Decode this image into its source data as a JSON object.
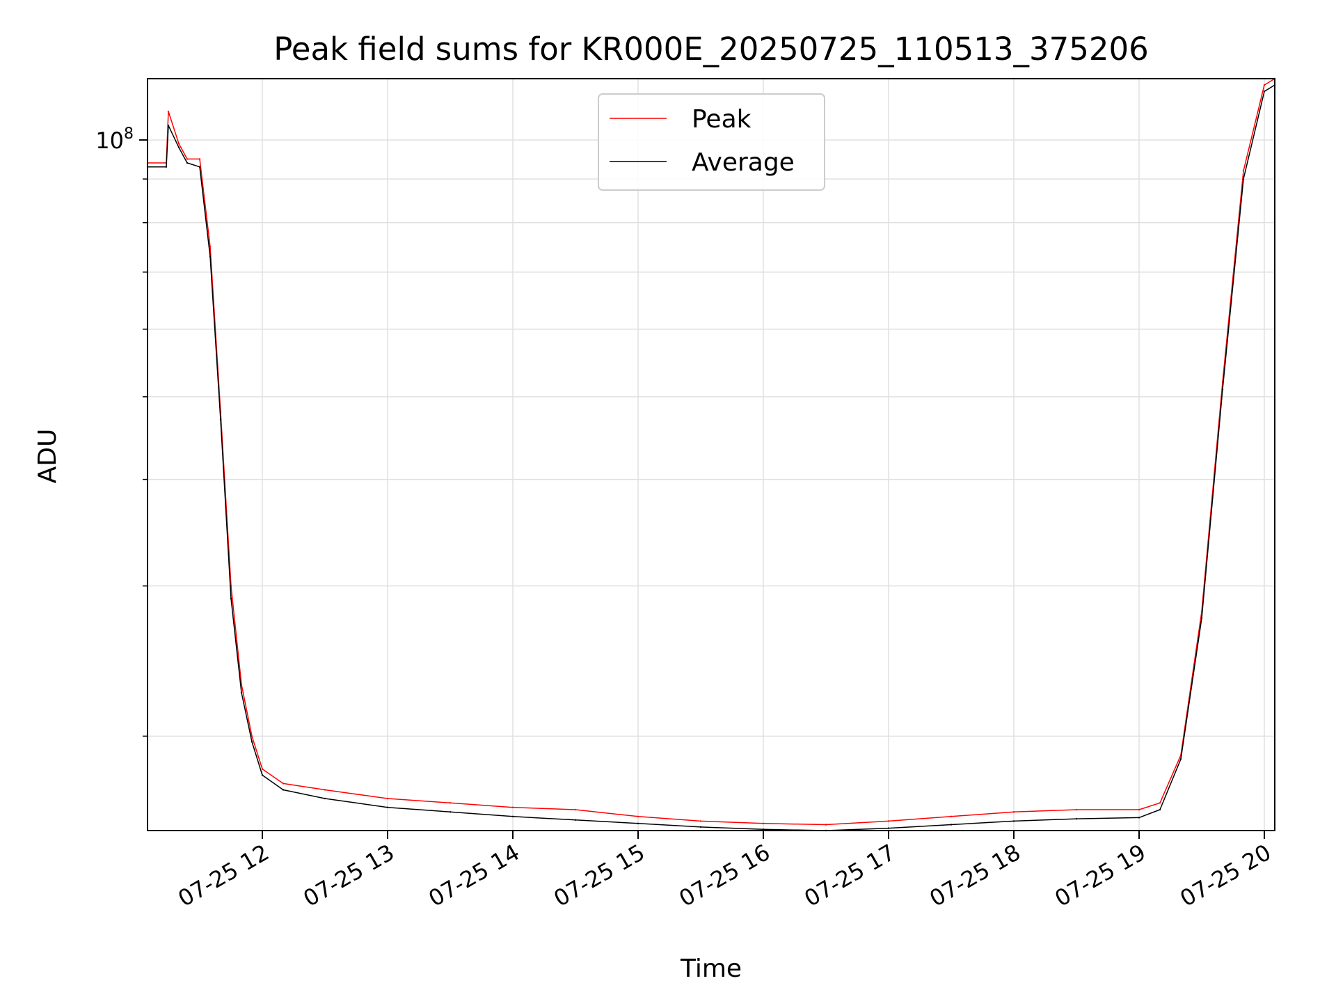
{
  "chart_data": {
    "type": "line",
    "title": "Peak field sums for KR000E_20250725_110513_375206",
    "xlabel": "Time",
    "ylabel": "ADU",
    "y_scale": "log",
    "ylim": [
      15500000,
      118000000
    ],
    "xlim": [
      "2025-07-25 11:05",
      "2025-07-25 20:05"
    ],
    "x_ticks": [
      {
        "value": "2025-07-25 12:00",
        "label": "07-25 12"
      },
      {
        "value": "2025-07-25 13:00",
        "label": "07-25 13"
      },
      {
        "value": "2025-07-25 14:00",
        "label": "07-25 14"
      },
      {
        "value": "2025-07-25 15:00",
        "label": "07-25 15"
      },
      {
        "value": "2025-07-25 16:00",
        "label": "07-25 16"
      },
      {
        "value": "2025-07-25 17:00",
        "label": "07-25 17"
      },
      {
        "value": "2025-07-25 18:00",
        "label": "07-25 18"
      },
      {
        "value": "2025-07-25 19:00",
        "label": "07-25 19"
      },
      {
        "value": "2025-07-25 20:00",
        "label": "07-25 20"
      }
    ],
    "y_ticks": [
      {
        "value": 100000000,
        "label_base": "10",
        "label_exp": "8"
      }
    ],
    "y_minor_ticks": [
      20000000,
      30000000,
      40000000,
      50000000,
      60000000,
      70000000,
      80000000,
      90000000
    ],
    "grid": true,
    "legend_position": "upper-center",
    "x": [
      "2025-07-25 11:05",
      "2025-07-25 11:14",
      "2025-07-25 11:15",
      "2025-07-25 11:20",
      "2025-07-25 11:24",
      "2025-07-25 11:30",
      "2025-07-25 11:35",
      "2025-07-25 11:40",
      "2025-07-25 11:45",
      "2025-07-25 11:50",
      "2025-07-25 11:55",
      "2025-07-25 12:00",
      "2025-07-25 12:10",
      "2025-07-25 12:30",
      "2025-07-25 13:00",
      "2025-07-25 13:30",
      "2025-07-25 14:00",
      "2025-07-25 14:30",
      "2025-07-25 15:00",
      "2025-07-25 15:30",
      "2025-07-25 16:00",
      "2025-07-25 16:30",
      "2025-07-25 17:00",
      "2025-07-25 17:30",
      "2025-07-25 18:00",
      "2025-07-25 18:30",
      "2025-07-25 19:00",
      "2025-07-25 19:10",
      "2025-07-25 19:20",
      "2025-07-25 19:30",
      "2025-07-25 19:40",
      "2025-07-25 19:50",
      "2025-07-25 20:00",
      "2025-07-25 20:05"
    ],
    "series": [
      {
        "name": "Peak",
        "color": "#ff0000",
        "values": [
          94000000,
          94000000,
          108000000,
          99000000,
          95000000,
          95000000,
          75000000,
          48000000,
          30000000,
          23000000,
          20000000,
          18300000,
          17600000,
          17300000,
          16900000,
          16700000,
          16500000,
          16400000,
          16100000,
          15900000,
          15800000,
          15750000,
          15900000,
          16100000,
          16300000,
          16400000,
          16400000,
          16700000,
          19000000,
          28000000,
          52000000,
          92000000,
          116000000,
          118000000
        ]
      },
      {
        "name": "Average",
        "color": "#000000",
        "values": [
          93000000,
          93000000,
          104000000,
          98000000,
          94000000,
          93000000,
          73000000,
          47000000,
          29000000,
          22500000,
          19700000,
          18000000,
          17300000,
          16900000,
          16500000,
          16300000,
          16100000,
          15950000,
          15800000,
          15650000,
          15550000,
          15500000,
          15600000,
          15750000,
          15900000,
          16000000,
          16050000,
          16400000,
          18800000,
          27500000,
          51000000,
          90000000,
          114000000,
          116000000
        ]
      }
    ]
  }
}
